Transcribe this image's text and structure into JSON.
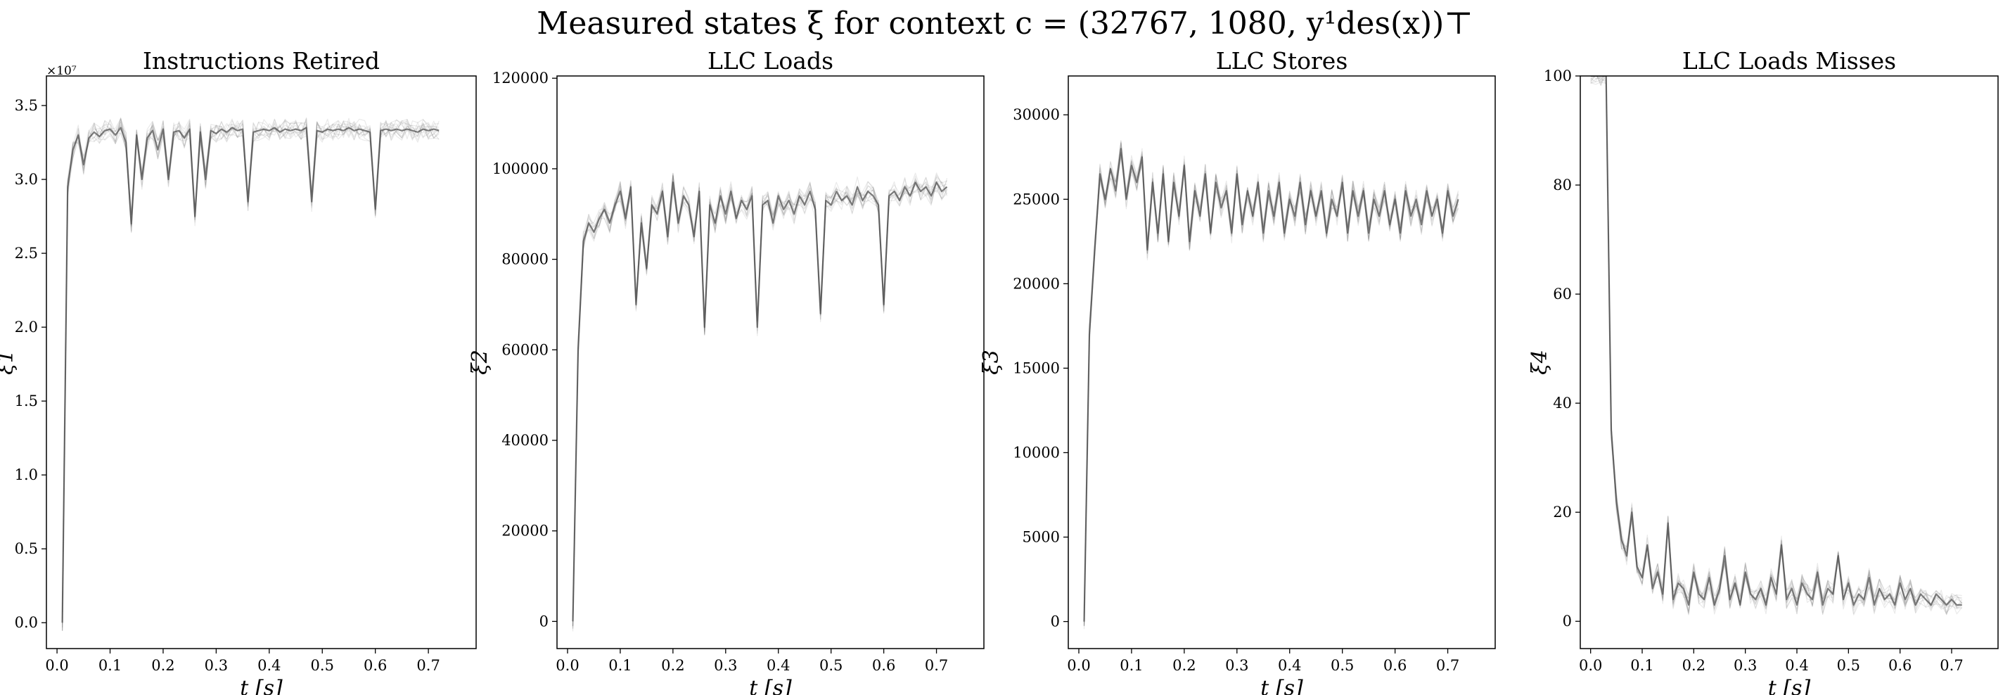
{
  "figure": {
    "suptitle": "Measured states ξ for context c = (32767, 1080, y¹des(x))⊤"
  },
  "chart_data": [
    {
      "type": "line",
      "title": "Instructions Retired",
      "xlabel": "t [s]",
      "ylabel": "ξ1",
      "y_offset_text": "×10⁷",
      "xlim": [
        -0.02,
        0.79
      ],
      "ylim": [
        -1750000,
        37000000
      ],
      "xticks": [
        0.0,
        0.1,
        0.2,
        0.3,
        0.4,
        0.5,
        0.6,
        0.7
      ],
      "xtick_labels": [
        "0.0",
        "0.1",
        "0.2",
        "0.3",
        "0.4",
        "0.5",
        "0.6",
        "0.7"
      ],
      "yticks": [
        0,
        5000000,
        10000000,
        15000000,
        20000000,
        25000000,
        30000000,
        35000000
      ],
      "ytick_labels": [
        "0.0",
        "0.5",
        "1.0",
        "1.5",
        "2.0",
        "2.5",
        "3.0",
        "3.5"
      ],
      "grid": false,
      "color": "#555555",
      "series": [
        {
          "x": [
            0.01,
            0.02,
            0.03,
            0.04,
            0.05,
            0.06,
            0.07,
            0.08,
            0.09,
            0.1,
            0.11,
            0.12,
            0.13,
            0.14,
            0.15,
            0.16,
            0.17,
            0.18,
            0.19,
            0.2,
            0.21,
            0.22,
            0.23,
            0.24,
            0.25,
            0.26,
            0.27,
            0.28,
            0.29,
            0.3,
            0.31,
            0.32,
            0.33,
            0.34,
            0.35,
            0.36,
            0.37,
            0.38,
            0.39,
            0.4,
            0.41,
            0.42,
            0.43,
            0.44,
            0.45,
            0.46,
            0.47,
            0.48,
            0.49,
            0.5,
            0.51,
            0.52,
            0.53,
            0.54,
            0.55,
            0.56,
            0.57,
            0.58,
            0.59,
            0.6,
            0.61,
            0.62,
            0.63,
            0.64,
            0.65,
            0.66,
            0.67,
            0.68,
            0.69,
            0.7,
            0.71,
            0.72
          ],
          "y": [
            0,
            29500000,
            32000000,
            33000000,
            31000000,
            32800000,
            33200000,
            32900000,
            33300000,
            33400000,
            33000000,
            33500000,
            32500000,
            27000000,
            33000000,
            30000000,
            32800000,
            33300000,
            32000000,
            33400000,
            30000000,
            33200000,
            33300000,
            32800000,
            33400000,
            27500000,
            33200000,
            30000000,
            33300000,
            33100000,
            33400000,
            33200000,
            33500000,
            33300000,
            33400000,
            28500000,
            33200000,
            33300000,
            33400000,
            33300000,
            33500000,
            33200000,
            33400000,
            33300000,
            33400000,
            33300000,
            33500000,
            28500000,
            33300000,
            33200000,
            33400000,
            33300000,
            33400000,
            33300000,
            33500000,
            33300000,
            33400000,
            33300000,
            33200000,
            28000000,
            33300000,
            33400000,
            33300000,
            33400000,
            33300000,
            33400000,
            33300000,
            33200000,
            33400000,
            33300000,
            33400000,
            33300000
          ]
        }
      ]
    },
    {
      "type": "line",
      "title": "LLC Loads",
      "xlabel": "t [s]",
      "ylabel": "ξ2",
      "xlim": [
        -0.02,
        0.79
      ],
      "ylim": [
        -6000,
        120500
      ],
      "xticks": [
        0.0,
        0.1,
        0.2,
        0.3,
        0.4,
        0.5,
        0.6,
        0.7
      ],
      "xtick_labels": [
        "0.0",
        "0.1",
        "0.2",
        "0.3",
        "0.4",
        "0.5",
        "0.6",
        "0.7"
      ],
      "yticks": [
        0,
        20000,
        40000,
        60000,
        80000,
        100000,
        120000
      ],
      "ytick_labels": [
        "0",
        "20000",
        "40000",
        "60000",
        "80000",
        "100000",
        "120000"
      ],
      "grid": false,
      "color": "#555555",
      "series": [
        {
          "x": [
            0.01,
            0.02,
            0.03,
            0.04,
            0.05,
            0.06,
            0.07,
            0.08,
            0.09,
            0.1,
            0.11,
            0.12,
            0.13,
            0.14,
            0.15,
            0.16,
            0.17,
            0.18,
            0.19,
            0.2,
            0.21,
            0.22,
            0.23,
            0.24,
            0.25,
            0.26,
            0.27,
            0.28,
            0.29,
            0.3,
            0.31,
            0.32,
            0.33,
            0.34,
            0.35,
            0.36,
            0.37,
            0.38,
            0.39,
            0.4,
            0.41,
            0.42,
            0.43,
            0.44,
            0.45,
            0.46,
            0.47,
            0.48,
            0.49,
            0.5,
            0.51,
            0.52,
            0.53,
            0.54,
            0.55,
            0.56,
            0.57,
            0.58,
            0.59,
            0.6,
            0.61,
            0.62,
            0.63,
            0.64,
            0.65,
            0.66,
            0.67,
            0.68,
            0.69,
            0.7,
            0.71,
            0.72
          ],
          "y": [
            0,
            60000,
            84000,
            88000,
            86000,
            89000,
            91000,
            88000,
            92000,
            95000,
            89000,
            96000,
            70000,
            88000,
            78000,
            92000,
            90000,
            95000,
            85000,
            97000,
            88000,
            94000,
            92000,
            85000,
            95000,
            65000,
            92000,
            88000,
            94000,
            90000,
            95000,
            89000,
            93000,
            91000,
            94000,
            65000,
            92000,
            93000,
            88000,
            94000,
            91000,
            93000,
            90000,
            94000,
            92000,
            95000,
            91000,
            68000,
            93000,
            92000,
            95000,
            93000,
            94000,
            92000,
            96000,
            93000,
            95000,
            94000,
            92000,
            70000,
            94000,
            95000,
            93000,
            96000,
            94000,
            97000,
            95000,
            96000,
            94000,
            97000,
            95000,
            96000
          ]
        }
      ]
    },
    {
      "type": "line",
      "title": "LLC Stores",
      "xlabel": "t [s]",
      "ylabel": "ξ3",
      "xlim": [
        -0.02,
        0.79
      ],
      "ylim": [
        -1600,
        32300
      ],
      "xticks": [
        0.0,
        0.1,
        0.2,
        0.3,
        0.4,
        0.5,
        0.6,
        0.7
      ],
      "xtick_labels": [
        "0.0",
        "0.1",
        "0.2",
        "0.3",
        "0.4",
        "0.5",
        "0.6",
        "0.7"
      ],
      "yticks": [
        0,
        5000,
        10000,
        15000,
        20000,
        25000,
        30000
      ],
      "ytick_labels": [
        "0",
        "5000",
        "10000",
        "15000",
        "20000",
        "25000",
        "30000"
      ],
      "grid": false,
      "color": "#555555",
      "series": [
        {
          "x": [
            0.01,
            0.02,
            0.03,
            0.04,
            0.05,
            0.06,
            0.07,
            0.08,
            0.09,
            0.1,
            0.11,
            0.12,
            0.13,
            0.14,
            0.15,
            0.16,
            0.17,
            0.18,
            0.19,
            0.2,
            0.21,
            0.22,
            0.23,
            0.24,
            0.25,
            0.26,
            0.27,
            0.28,
            0.29,
            0.3,
            0.31,
            0.32,
            0.33,
            0.34,
            0.35,
            0.36,
            0.37,
            0.38,
            0.39,
            0.4,
            0.41,
            0.42,
            0.43,
            0.44,
            0.45,
            0.46,
            0.47,
            0.48,
            0.49,
            0.5,
            0.51,
            0.52,
            0.53,
            0.54,
            0.55,
            0.56,
            0.57,
            0.58,
            0.59,
            0.6,
            0.61,
            0.62,
            0.63,
            0.64,
            0.65,
            0.66,
            0.67,
            0.68,
            0.69,
            0.7,
            0.71,
            0.72
          ],
          "y": [
            0,
            17000,
            22000,
            26500,
            25000,
            26800,
            25500,
            28000,
            25000,
            27000,
            26000,
            27500,
            22000,
            26000,
            23000,
            26500,
            22500,
            26000,
            24000,
            27000,
            22500,
            25500,
            24000,
            26500,
            23000,
            26000,
            24500,
            25500,
            23000,
            26500,
            23500,
            25500,
            24000,
            26000,
            23000,
            25500,
            24000,
            26000,
            23000,
            25000,
            24000,
            26000,
            23500,
            25500,
            24000,
            25500,
            23000,
            25000,
            24000,
            26000,
            23000,
            25500,
            24000,
            25500,
            23000,
            25000,
            24000,
            25500,
            23500,
            25000,
            23000,
            25500,
            24000,
            25000,
            23500,
            25500,
            24000,
            25000,
            23000,
            25500,
            24000,
            25000
          ]
        }
      ]
    },
    {
      "type": "line",
      "title": "LLC Loads Misses",
      "xlabel": "t [s]",
      "ylabel": "ξ4",
      "xlim": [
        -0.02,
        0.79
      ],
      "ylim": [
        -5,
        100
      ],
      "xticks": [
        0.0,
        0.1,
        0.2,
        0.3,
        0.4,
        0.5,
        0.6,
        0.7
      ],
      "xtick_labels": [
        "0.0",
        "0.1",
        "0.2",
        "0.3",
        "0.4",
        "0.5",
        "0.6",
        "0.7"
      ],
      "yticks": [
        0,
        20,
        40,
        60,
        80,
        100
      ],
      "ytick_labels": [
        "0",
        "20",
        "40",
        "60",
        "80",
        "100"
      ],
      "grid": false,
      "color": "#555555",
      "series": [
        {
          "x": [
            0.0,
            0.01,
            0.02,
            0.03,
            0.04,
            0.05,
            0.06,
            0.07,
            0.08,
            0.09,
            0.1,
            0.11,
            0.12,
            0.13,
            0.14,
            0.15,
            0.16,
            0.17,
            0.18,
            0.19,
            0.2,
            0.21,
            0.22,
            0.23,
            0.24,
            0.25,
            0.26,
            0.27,
            0.28,
            0.29,
            0.3,
            0.31,
            0.32,
            0.33,
            0.34,
            0.35,
            0.36,
            0.37,
            0.38,
            0.39,
            0.4,
            0.41,
            0.42,
            0.43,
            0.44,
            0.45,
            0.46,
            0.47,
            0.48,
            0.49,
            0.5,
            0.51,
            0.52,
            0.53,
            0.54,
            0.55,
            0.56,
            0.57,
            0.58,
            0.59,
            0.6,
            0.61,
            0.62,
            0.63,
            0.64,
            0.65,
            0.66,
            0.67,
            0.68,
            0.69,
            0.7,
            0.71,
            0.72
          ],
          "y": [
            100,
            100,
            100,
            100,
            35,
            22,
            15,
            12,
            20,
            10,
            8,
            14,
            6,
            9,
            5,
            18,
            4,
            7,
            6,
            3,
            9,
            5,
            4,
            8,
            3,
            6,
            12,
            4,
            7,
            3,
            9,
            5,
            4,
            6,
            3,
            8,
            5,
            14,
            4,
            6,
            3,
            7,
            5,
            4,
            9,
            3,
            6,
            5,
            12,
            4,
            7,
            3,
            5,
            4,
            8,
            3,
            6,
            4,
            5,
            3,
            7,
            4,
            6,
            3,
            5,
            4,
            3,
            5,
            4,
            3,
            4,
            3,
            3
          ]
        }
      ]
    }
  ]
}
